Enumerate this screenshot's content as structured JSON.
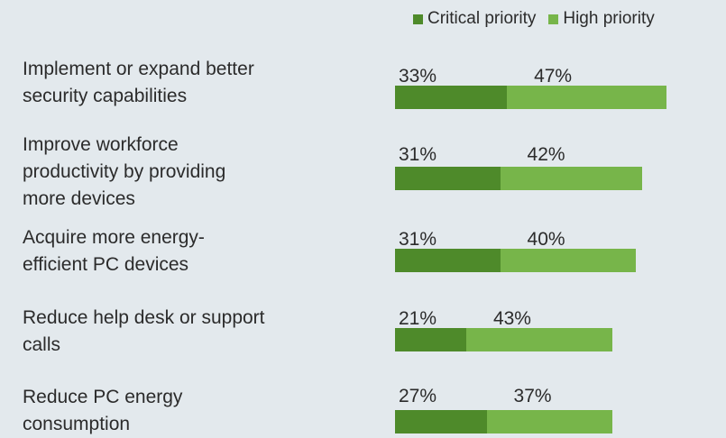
{
  "chart_data": {
    "type": "bar",
    "orientation": "horizontal",
    "stacked": true,
    "categories": [
      "Implement or expand better security capabilities",
      "Improve workforce productivity by providing more devices",
      "Acquire more energy-efficient PC devices",
      "Reduce help desk or support calls",
      "Reduce PC energy consumption"
    ],
    "category_lines": [
      [
        "Implement or expand better",
        "security capabilities"
      ],
      [
        "Improve workforce",
        "productivity by providing",
        "more devices"
      ],
      [
        "Acquire more energy-",
        "efficient PC devices"
      ],
      [
        "Reduce help desk or support",
        "calls"
      ],
      [
        "Reduce PC energy",
        "consumption"
      ]
    ],
    "series": [
      {
        "name": "Critical priority",
        "values": [
          33,
          31,
          31,
          21,
          27
        ],
        "labels": [
          "33%",
          "31%",
          "31%",
          "21%",
          "27%"
        ],
        "color": "#4e8a2a"
      },
      {
        "name": "High priority",
        "values": [
          47,
          42,
          40,
          43,
          37
        ],
        "labels": [
          "47%",
          "42%",
          "40%",
          "43%",
          "37%"
        ],
        "color": "#77b54a"
      }
    ],
    "legend": "top-right",
    "grid": false
  }
}
